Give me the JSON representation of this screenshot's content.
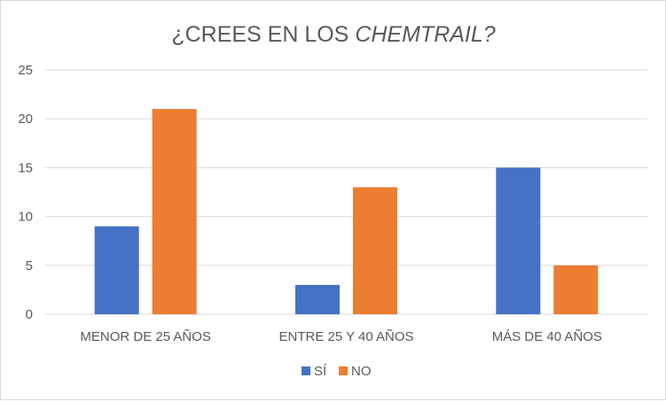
{
  "chart_data": {
    "type": "bar",
    "title_prefix": "¿CREES EN LOS ",
    "title_emph": "CHEMTRAIL?",
    "categories": [
      "MENOR DE 25 AÑOS",
      "ENTRE 25 Y 40 AÑOS",
      "MÁS DE 40 AÑOS"
    ],
    "series": [
      {
        "name": "SÍ",
        "color": "#4472c4",
        "values": [
          9,
          3,
          15
        ]
      },
      {
        "name": "NO",
        "color": "#ed7d31",
        "values": [
          21,
          13,
          5
        ]
      }
    ],
    "ylim": [
      0,
      25
    ],
    "yticks": [
      0,
      5,
      10,
      15,
      20,
      25
    ],
    "grid": true,
    "legend_position": "bottom"
  }
}
